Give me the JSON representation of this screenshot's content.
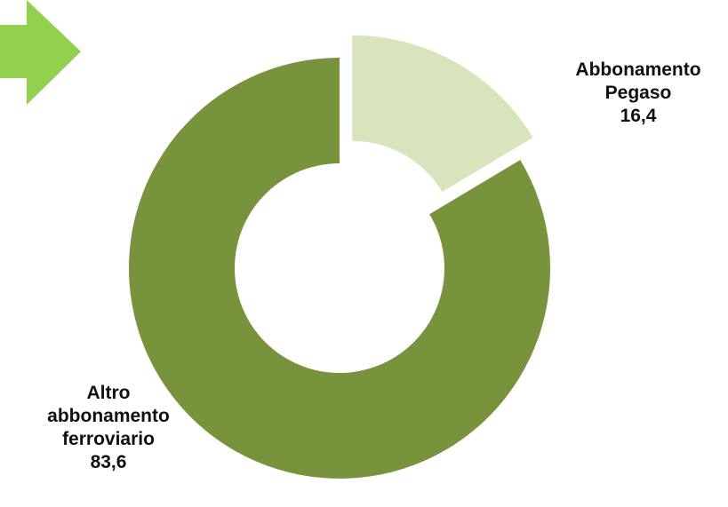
{
  "decor": {
    "arrow_icon": "arrow-right-icon",
    "arrow_color": "#92D050"
  },
  "chart_data": {
    "type": "pie",
    "variant": "doughnut",
    "title": "",
    "slices": [
      {
        "label_lines": [
          "Abbonamento",
          "Pegaso"
        ],
        "value": 16.4,
        "value_label": "16,4",
        "color": "#D8E4BC",
        "exploded": true
      },
      {
        "label_lines": [
          "Altro",
          "abbonamento",
          "ferroviario"
        ],
        "value": 83.6,
        "value_label": "83,6",
        "color": "#77933C",
        "exploded": false
      }
    ]
  }
}
